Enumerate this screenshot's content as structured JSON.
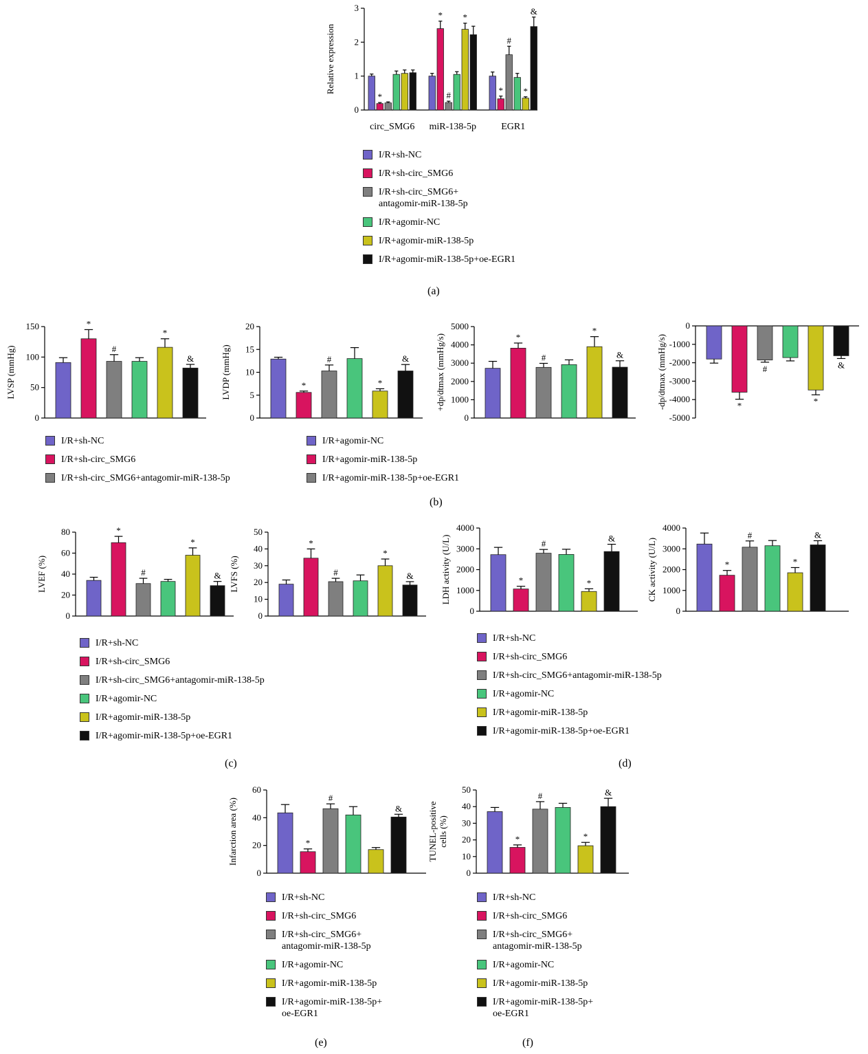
{
  "colors": [
    "#6f64c8",
    "#d8145f",
    "#7f7f7f",
    "#49c57c",
    "#c9c21c",
    "#111111"
  ],
  "panels": {
    "a": {
      "label": "(a)",
      "legend": [
        "I/R+sh-NC",
        "I/R+sh-circ_SMG6",
        "I/R+sh-circ_SMG6+\nantagomir-miR-138-5p",
        "I/R+agomir-NC",
        "I/R+agomir-miR-138-5p",
        "I/R+agomir-miR-138-5p+oe-EGR1"
      ]
    },
    "b": {
      "label": "(b)",
      "legend_left": [
        "I/R+sh-NC",
        "I/R+sh-circ_SMG6",
        "I/R+sh-circ_SMG6+antagomir-miR-138-5p"
      ],
      "legend_right": [
        "I/R+agomir-NC",
        "I/R+agomir-miR-138-5p",
        "I/R+agomir-miR-138-5p+oe-EGR1"
      ]
    },
    "c": {
      "label": "(c)",
      "legend": [
        "I/R+sh-NC",
        "I/R+sh-circ_SMG6",
        "I/R+sh-circ_SMG6+antagomir-miR-138-5p",
        "I/R+agomir-NC",
        "I/R+agomir-miR-138-5p",
        "I/R+agomir-miR-138-5p+oe-EGR1"
      ]
    },
    "d": {
      "label": "(d)",
      "legend": [
        "I/R+sh-NC",
        "I/R+sh-circ_SMG6",
        "I/R+sh-circ_SMG6+antagomir-miR-138-5p",
        "I/R+agomir-NC",
        "I/R+agomir-miR-138-5p",
        "I/R+agomir-miR-138-5p+oe-EGR1"
      ]
    },
    "e": {
      "label": "(e)",
      "legend": [
        "I/R+sh-NC",
        "I/R+sh-circ_SMG6",
        "I/R+sh-circ_SMG6+\nantagomir-miR-138-5p",
        "I/R+agomir-NC",
        "I/R+agomir-miR-138-5p",
        "I/R+agomir-miR-138-5p+\noe-EGR1"
      ]
    },
    "f": {
      "label": "(f)",
      "legend": [
        "I/R+sh-NC",
        "I/R+sh-circ_SMG6",
        "I/R+sh-circ_SMG6+\nantagomir-miR-138-5p",
        "I/R+agomir-NC",
        "I/R+agomir-miR-138-5p",
        "I/R+agomir-miR-138-5p+\noe-EGR1"
      ]
    }
  },
  "chart_data": [
    {
      "id": "a",
      "type": "bar",
      "ylabel": "Relative expression",
      "ylim": [
        0,
        3
      ],
      "yticks": [
        0,
        1,
        2,
        3
      ],
      "categories": [
        "circ_SMG6",
        "miR-138-5p",
        "EGR1"
      ],
      "groups": [
        {
          "category": "circ_SMG6",
          "values": [
            1.0,
            0.19,
            0.21,
            1.05,
            1.08,
            1.1
          ],
          "errors": [
            0.06,
            0.03,
            0.03,
            0.1,
            0.1,
            0.08
          ],
          "marks": [
            "",
            "*",
            "",
            "",
            "",
            ""
          ]
        },
        {
          "category": "miR-138-5p",
          "values": [
            1.0,
            2.4,
            0.22,
            1.05,
            2.38,
            2.22
          ],
          "errors": [
            0.08,
            0.22,
            0.04,
            0.08,
            0.18,
            0.25
          ],
          "marks": [
            "",
            "*",
            "#",
            "",
            "*",
            ""
          ]
        },
        {
          "category": "EGR1",
          "values": [
            1.0,
            0.33,
            1.63,
            0.96,
            0.35,
            2.46
          ],
          "errors": [
            0.12,
            0.08,
            0.25,
            0.12,
            0.04,
            0.28
          ],
          "marks": [
            "",
            "*",
            "#",
            "",
            "*",
            "&"
          ]
        }
      ]
    },
    {
      "id": "b1",
      "type": "bar",
      "ylabel": "LVSP (mmHg)",
      "ylim": [
        0,
        150
      ],
      "yticks": [
        0,
        50,
        100,
        150
      ],
      "values": [
        91,
        130,
        93,
        93,
        116,
        82
      ],
      "errors": [
        8,
        15,
        11,
        6,
        14,
        6
      ],
      "marks": [
        "",
        "*",
        "#",
        "",
        "*",
        "&"
      ]
    },
    {
      "id": "b2",
      "type": "bar",
      "ylabel": "LVDP (mmHg)",
      "ylim": [
        0,
        20
      ],
      "yticks": [
        0,
        5,
        10,
        15,
        20
      ],
      "values": [
        12.9,
        5.6,
        10.3,
        13.0,
        5.9,
        10.3
      ],
      "errors": [
        0.4,
        0.3,
        1.3,
        2.4,
        0.5,
        1.4
      ],
      "marks": [
        "",
        "*",
        "#",
        "",
        "*",
        "&"
      ]
    },
    {
      "id": "b3",
      "type": "bar",
      "ylabel": "+dp/dtmax (mmHg/s)",
      "ylim": [
        0,
        5000
      ],
      "yticks": [
        0,
        1000,
        2000,
        3000,
        4000,
        5000
      ],
      "values": [
        2720,
        3820,
        2770,
        2920,
        3900,
        2780
      ],
      "errors": [
        380,
        280,
        220,
        260,
        550,
        350
      ],
      "marks": [
        "",
        "*",
        "#",
        "",
        "*",
        "&"
      ]
    },
    {
      "id": "b4",
      "type": "bar",
      "ylabel": "-dp/dtmax (mmHg/s)",
      "ylim": [
        -5000,
        0
      ],
      "yticks": [
        0,
        -1000,
        -2000,
        -3000,
        -4000,
        -5000
      ],
      "values": [
        -1800,
        -3600,
        -1850,
        -1720,
        -3480,
        -1620
      ],
      "errors": [
        220,
        380,
        120,
        180,
        260,
        150
      ],
      "marks": [
        "",
        "*",
        "#",
        "",
        "*",
        "&"
      ]
    },
    {
      "id": "c1",
      "type": "bar",
      "ylabel": "LVEF (%)",
      "ylim": [
        0,
        80
      ],
      "yticks": [
        0,
        20,
        40,
        60,
        80
      ],
      "values": [
        34,
        70,
        31,
        33,
        58,
        29
      ],
      "errors": [
        3,
        6,
        5,
        2,
        7,
        4
      ],
      "marks": [
        "",
        "*",
        "#",
        "",
        "*",
        "&"
      ]
    },
    {
      "id": "c2",
      "type": "bar",
      "ylabel": "LVFS (%)",
      "ylim": [
        0,
        50
      ],
      "yticks": [
        0,
        10,
        20,
        30,
        40,
        50
      ],
      "values": [
        19,
        34.5,
        20.5,
        21,
        30,
        18.5
      ],
      "errors": [
        2.5,
        5.5,
        2,
        3.5,
        4,
        2
      ],
      "marks": [
        "",
        "*",
        "#",
        "",
        "*",
        "&"
      ]
    },
    {
      "id": "d1",
      "type": "bar",
      "ylabel": "LDH activity (U/L)",
      "ylim": [
        0,
        4000
      ],
      "yticks": [
        0,
        1000,
        2000,
        3000,
        4000
      ],
      "values": [
        2720,
        1070,
        2790,
        2730,
        950,
        2870
      ],
      "errors": [
        350,
        130,
        180,
        250,
        130,
        350
      ],
      "marks": [
        "",
        "*",
        "#",
        "",
        "*",
        "&"
      ]
    },
    {
      "id": "d2",
      "type": "bar",
      "ylabel": "CK activity (U/L)",
      "ylim": [
        0,
        4000
      ],
      "yticks": [
        0,
        1000,
        2000,
        3000,
        4000
      ],
      "values": [
        3230,
        1730,
        3080,
        3150,
        1850,
        3190
      ],
      "errors": [
        530,
        230,
        300,
        250,
        250,
        200
      ],
      "marks": [
        "",
        "*",
        "#",
        "",
        "*",
        "&"
      ]
    },
    {
      "id": "e1",
      "type": "bar",
      "ylabel": "Infarction area (%)",
      "ylim": [
        0,
        60
      ],
      "yticks": [
        0,
        20,
        40,
        60
      ],
      "values": [
        43.5,
        15.5,
        46.5,
        42,
        17,
        40.5
      ],
      "errors": [
        6,
        2,
        3.5,
        6,
        1.5,
        2
      ],
      "marks": [
        "",
        "*",
        "#",
        "",
        "",
        "&"
      ]
    },
    {
      "id": "f1",
      "type": "bar",
      "ylabel": "TUNEL-positive\ncells (%)",
      "ylim": [
        0,
        50
      ],
      "yticks": [
        0,
        10,
        20,
        30,
        40,
        50
      ],
      "values": [
        37,
        15.5,
        38.5,
        39.5,
        16.5,
        40
      ],
      "errors": [
        2.5,
        1.5,
        4.5,
        2.5,
        2,
        5
      ],
      "marks": [
        "",
        "*",
        "#",
        "",
        "*",
        "&"
      ]
    }
  ]
}
